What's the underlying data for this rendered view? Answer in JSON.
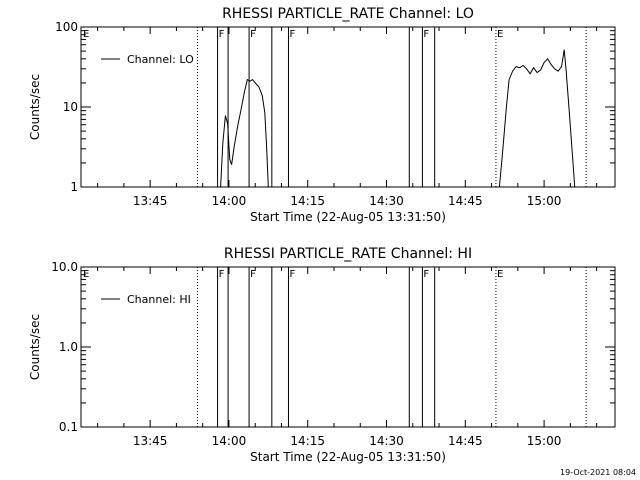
{
  "footer_date": "19-Oct-2021 08:04",
  "chart_data": [
    {
      "type": "line",
      "title": "RHESSI PARTICLE_RATE Channel: LO",
      "xlabel": "Start Time (22-Aug-05 13:31:50)",
      "ylabel": "Counts/sec",
      "xlim": [
        "13:31:50",
        "15:13:30"
      ],
      "ylim": [
        1,
        100
      ],
      "log_y": true,
      "x_ticks": [
        "13:45",
        "14:00",
        "14:15",
        "14:30",
        "14:45",
        "15:00"
      ],
      "y_ticks": [
        "1",
        "10",
        "100"
      ],
      "legend": {
        "position": "top-left",
        "entries": [
          "Channel: LO"
        ]
      },
      "series": [
        {
          "name": "Channel: LO",
          "segments": [
            [
              [
                "13:58:25",
                1
              ],
              [
                "13:58:50",
                3.5
              ],
              [
                "13:59:20",
                7.8
              ],
              [
                "13:59:45",
                6.2
              ],
              [
                "14:00:10",
                2.2
              ],
              [
                "14:00:30",
                1.9
              ],
              [
                "14:01:00",
                3.2
              ],
              [
                "14:01:40",
                5.8
              ],
              [
                "14:02:20",
                9.5
              ],
              [
                "14:03:00",
                16
              ],
              [
                "14:03:30",
                22
              ],
              [
                "14:04:00",
                21
              ],
              [
                "14:04:30",
                22
              ],
              [
                "14:05:00",
                20
              ],
              [
                "14:05:40",
                18
              ],
              [
                "14:06:20",
                14
              ],
              [
                "14:06:50",
                8.5
              ],
              [
                "14:07:10",
                3.2
              ],
              [
                "14:07:30",
                1
              ]
            ],
            [
              [
                "14:51:30",
                1
              ],
              [
                "14:52:10",
                3
              ],
              [
                "14:52:50",
                10
              ],
              [
                "14:53:20",
                22
              ],
              [
                "14:54:00",
                28
              ],
              [
                "14:54:40",
                32
              ],
              [
                "14:55:20",
                31
              ],
              [
                "14:56:00",
                33
              ],
              [
                "14:56:40",
                30
              ],
              [
                "14:57:20",
                26
              ],
              [
                "14:58:00",
                31
              ],
              [
                "14:58:40",
                27
              ],
              [
                "14:59:20",
                29
              ],
              [
                "15:00:00",
                36
              ],
              [
                "15:00:40",
                40
              ],
              [
                "15:01:20",
                34
              ],
              [
                "15:02:00",
                30
              ],
              [
                "15:02:40",
                28
              ],
              [
                "15:03:20",
                32
              ],
              [
                "15:03:50",
                52
              ],
              [
                "15:04:10",
                30
              ],
              [
                "15:04:50",
                8
              ],
              [
                "15:05:30",
                2
              ],
              [
                "15:05:50",
                1
              ]
            ]
          ]
        }
      ],
      "markers": [
        {
          "time": "13:54:00",
          "style": "dotted",
          "label": ""
        },
        {
          "time": "13:57:50",
          "style": "solid",
          "label": "F"
        },
        {
          "time": "13:59:50",
          "style": "solid",
          "label": ""
        },
        {
          "time": "14:03:50",
          "style": "solid",
          "label": "F"
        },
        {
          "time": "14:08:10",
          "style": "solid",
          "label": ""
        },
        {
          "time": "14:11:20",
          "style": "solid",
          "label": "F"
        },
        {
          "time": "14:34:20",
          "style": "solid",
          "label": ""
        },
        {
          "time": "14:36:50",
          "style": "solid",
          "label": "F"
        },
        {
          "time": "14:39:10",
          "style": "solid",
          "label": ""
        },
        {
          "time": "14:50:50",
          "style": "dotted",
          "label": "E"
        },
        {
          "time": "15:08:00",
          "style": "dotted",
          "label": ""
        }
      ],
      "start_marker_label": "E"
    },
    {
      "type": "line",
      "title": "RHESSI PARTICLE_RATE Channel: HI",
      "xlabel": "Start Time (22-Aug-05 13:31:50)",
      "ylabel": "Counts/sec",
      "xlim": [
        "13:31:50",
        "15:13:30"
      ],
      "ylim": [
        0.1,
        10
      ],
      "log_y": true,
      "x_ticks": [
        "13:45",
        "14:00",
        "14:15",
        "14:30",
        "14:45",
        "15:00"
      ],
      "y_ticks": [
        "0.1",
        "1.0",
        "10.0"
      ],
      "legend": {
        "position": "top-left",
        "entries": [
          "Channel: HI"
        ]
      },
      "series": [
        {
          "name": "Channel: HI",
          "segments": []
        }
      ],
      "markers": [
        {
          "time": "13:54:00",
          "style": "dotted",
          "label": ""
        },
        {
          "time": "13:57:50",
          "style": "solid",
          "label": "F"
        },
        {
          "time": "13:59:50",
          "style": "solid",
          "label": ""
        },
        {
          "time": "14:03:50",
          "style": "solid",
          "label": "F"
        },
        {
          "time": "14:08:10",
          "style": "solid",
          "label": ""
        },
        {
          "time": "14:11:20",
          "style": "solid",
          "label": "F"
        },
        {
          "time": "14:34:20",
          "style": "solid",
          "label": ""
        },
        {
          "time": "14:36:50",
          "style": "solid",
          "label": "F"
        },
        {
          "time": "14:39:10",
          "style": "solid",
          "label": ""
        },
        {
          "time": "14:50:50",
          "style": "dotted",
          "label": "E"
        },
        {
          "time": "15:08:00",
          "style": "dotted",
          "label": ""
        }
      ],
      "start_marker_label": "E"
    }
  ]
}
